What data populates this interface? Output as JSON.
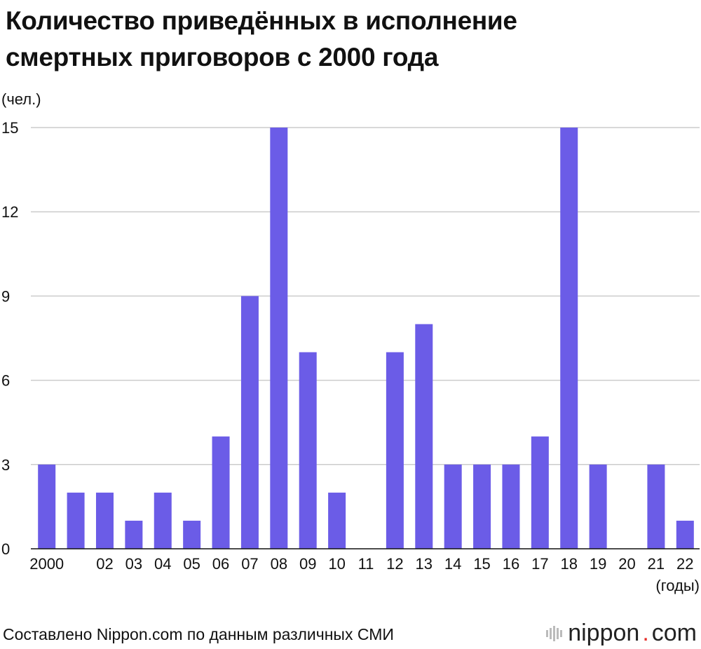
{
  "title_line1": "Количество приведённых в исполнение",
  "title_line2": "смертных приговоров с 2000 года",
  "source": "Составлено Nippon.com по данным различных СМИ",
  "brand": {
    "name": "nippon",
    "dot": ".",
    "suffix": "com"
  },
  "colors": {
    "bar": "#6b5ce7",
    "grid": "#cccccc",
    "axis": "#111111",
    "brand_dot": "#e6302b"
  },
  "chart_data": {
    "type": "bar",
    "title": "Количество приведённых в исполнение смертных приговоров с 2000 года",
    "ylabel": "(чел.)",
    "xlabel": "(годы)",
    "ylim": [
      0,
      15
    ],
    "yticks": [
      0,
      3,
      6,
      9,
      12,
      15
    ],
    "grid": true,
    "categories": [
      "2000",
      "",
      "02",
      "03",
      "04",
      "05",
      "06",
      "07",
      "08",
      "09",
      "10",
      "11",
      "12",
      "13",
      "14",
      "15",
      "16",
      "17",
      "18",
      "19",
      "20",
      "21",
      "22"
    ],
    "values": [
      3,
      2,
      2,
      1,
      2,
      1,
      4,
      9,
      15,
      7,
      2,
      0,
      7,
      8,
      3,
      3,
      3,
      4,
      15,
      3,
      0,
      3,
      1
    ]
  }
}
